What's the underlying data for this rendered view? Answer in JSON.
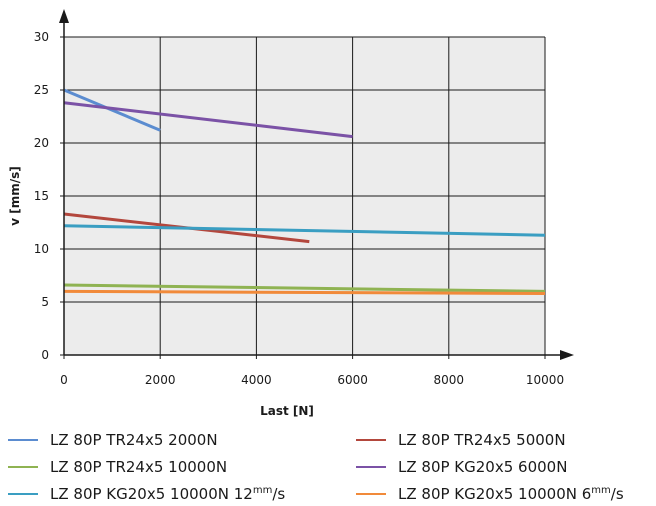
{
  "chart_data": {
    "type": "line",
    "xlabel": "Last [N]",
    "ylabel": "v [mm/s]",
    "xlim": [
      0,
      10000
    ],
    "ylim": [
      0,
      30
    ],
    "xticks": [
      0,
      2000,
      4000,
      6000,
      8000,
      10000
    ],
    "yticks": [
      0,
      5,
      10,
      15,
      20,
      25,
      30
    ],
    "grid": true,
    "plot_background": "#ececec",
    "legend_position": "bottom",
    "series": [
      {
        "name": "LZ 80P TR24x5 2000N",
        "color": "#5b8cd0",
        "x": [
          0,
          2000
        ],
        "y": [
          25.0,
          21.2
        ]
      },
      {
        "name": "LZ 80P TR24x5 5000N",
        "color": "#b3473d",
        "x": [
          0,
          5100
        ],
        "y": [
          13.3,
          10.7
        ]
      },
      {
        "name": "LZ 80P TR24x5 10000N",
        "color": "#8fb352",
        "x": [
          0,
          10000
        ],
        "y": [
          6.6,
          6.0
        ]
      },
      {
        "name": "LZ 80P KG20x5 6000N",
        "color": "#7b52a6",
        "x": [
          0,
          6000
        ],
        "y": [
          23.8,
          20.6
        ]
      },
      {
        "name": "LZ 80P KG20x5 10000N 12",
        "unit_sup": "mm",
        "unit_rest": "/s",
        "color": "#3a9ec2",
        "x": [
          0,
          10000
        ],
        "y": [
          12.2,
          11.3
        ]
      },
      {
        "name": "LZ 80P KG20x5 10000N 6",
        "unit_sup": "mm",
        "unit_rest": "/s",
        "color": "#f18a3a",
        "x": [
          0,
          10000
        ],
        "y": [
          6.0,
          5.8
        ]
      }
    ]
  }
}
